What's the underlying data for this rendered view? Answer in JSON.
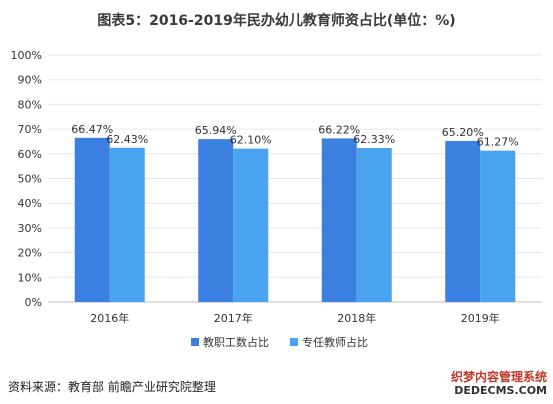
{
  "title": "图表5：2016-2019年民办幼儿教育师资占比(单位：%)",
  "source": "资料来源：教育部 前瞻产业研究院整理",
  "watermark": {
    "cn": "织梦内容管理系统",
    "en": "DEDECMS.COM"
  },
  "chart_data": {
    "type": "bar",
    "categories": [
      "2016年",
      "2017年",
      "2018年",
      "2019年"
    ],
    "series": [
      {
        "name": "教职工数占比",
        "values": [
          66.47,
          65.94,
          66.22,
          65.2
        ],
        "labels": [
          "66.47%",
          "65.94%",
          "66.22%",
          "65.20%"
        ],
        "color": "#3b7fe0"
      },
      {
        "name": "专任教师占比",
        "values": [
          62.43,
          62.1,
          62.33,
          61.27
        ],
        "labels": [
          "62.43%",
          "62.10%",
          "62.33%",
          "61.27%"
        ],
        "color": "#4aa3ee"
      }
    ],
    "ylim": [
      0,
      100
    ],
    "yticks": [
      "0%",
      "10%",
      "20%",
      "30%",
      "40%",
      "50%",
      "60%",
      "70%",
      "80%",
      "90%",
      "100%"
    ],
    "legend_position": "bottom"
  }
}
